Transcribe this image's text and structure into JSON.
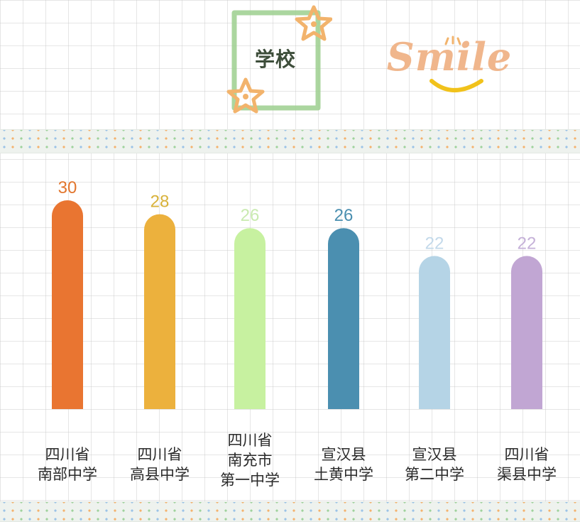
{
  "header": {
    "title": "学校",
    "smile_text": "Smile"
  },
  "chart_data": {
    "type": "bar",
    "categories": [
      "四川省\n南部中学",
      "四川省\n高县中学",
      "四川省\n南充市\n第一中学",
      "宣汉县\n土黄中学",
      "宣汉县\n第二中学",
      "四川省\n渠县中学"
    ],
    "values": [
      30,
      28,
      26,
      26,
      22,
      22
    ],
    "value_labels": [
      "30",
      "28",
      "26",
      "26",
      "22",
      "22"
    ],
    "colors": [
      "#e97531",
      "#ecb13d",
      "#c7f1a0",
      "#4b8fb0",
      "#b5d4e6",
      "#c1a6d3"
    ],
    "label_colors": [
      "#e2762e",
      "#d8b23a",
      "#c9eab0",
      "#4b8fb0",
      "#c3d9ea",
      "#c5b1d8"
    ],
    "ylim": [
      0,
      30
    ]
  }
}
